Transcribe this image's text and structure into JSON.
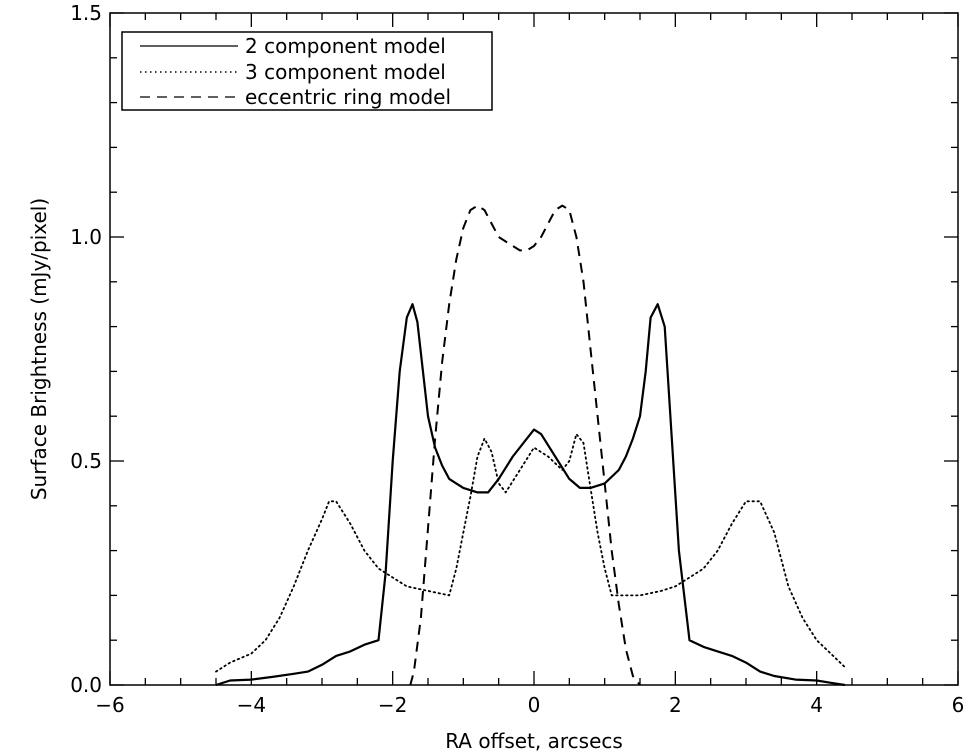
{
  "chart_data": {
    "type": "line",
    "title": "",
    "xlabel": "RA offset, arcsecs",
    "ylabel": "Surface Brightness (mJy/pixel)",
    "xlim": [
      -6,
      6
    ],
    "ylim": [
      0,
      1.5
    ],
    "x_ticks": [
      -6,
      -4,
      -2,
      0,
      2,
      4,
      6
    ],
    "x_tick_labels": [
      "−6",
      "−4",
      "−2",
      "0",
      "2",
      "4",
      "6"
    ],
    "y_ticks": [
      0,
      0.5,
      1,
      1.5
    ],
    "y_tick_labels": [
      "0.0",
      "0.5",
      "1.0",
      "1.5"
    ],
    "grid": false,
    "legend_position": "top-left",
    "series": [
      {
        "name": "2 component model",
        "style": "solid",
        "x": [
          -4.5,
          -4.3,
          -4.0,
          -3.7,
          -3.4,
          -3.2,
          -3.0,
          -2.8,
          -2.6,
          -2.4,
          -2.2,
          -2.1,
          -2.0,
          -1.9,
          -1.8,
          -1.72,
          -1.65,
          -1.5,
          -1.4,
          -1.3,
          -1.2,
          -1.0,
          -0.8,
          -0.65,
          -0.5,
          -0.3,
          -0.1,
          0.0,
          0.1,
          0.3,
          0.5,
          0.65,
          0.8,
          1.0,
          1.2,
          1.3,
          1.4,
          1.5,
          1.58,
          1.65,
          1.75,
          1.85,
          1.95,
          2.05,
          2.2,
          2.4,
          2.6,
          2.8,
          3.0,
          3.2,
          3.4,
          3.7,
          4.0,
          4.2,
          4.4
        ],
        "y": [
          0.0,
          0.01,
          0.012,
          0.018,
          0.025,
          0.03,
          0.045,
          0.065,
          0.075,
          0.09,
          0.1,
          0.25,
          0.5,
          0.7,
          0.82,
          0.85,
          0.81,
          0.6,
          0.53,
          0.49,
          0.46,
          0.44,
          0.43,
          0.43,
          0.46,
          0.51,
          0.55,
          0.57,
          0.56,
          0.51,
          0.46,
          0.44,
          0.44,
          0.45,
          0.48,
          0.51,
          0.55,
          0.6,
          0.7,
          0.82,
          0.85,
          0.8,
          0.55,
          0.3,
          0.1,
          0.085,
          0.075,
          0.065,
          0.05,
          0.03,
          0.02,
          0.012,
          0.01,
          0.005,
          0.0
        ]
      },
      {
        "name": "3 component model",
        "style": "dotted",
        "x": [
          -4.5,
          -4.3,
          -4.0,
          -3.8,
          -3.6,
          -3.4,
          -3.2,
          -3.0,
          -2.9,
          -2.8,
          -2.6,
          -2.4,
          -2.2,
          -2.0,
          -1.8,
          -1.5,
          -1.2,
          -1.1,
          -1.0,
          -0.9,
          -0.8,
          -0.7,
          -0.6,
          -0.5,
          -0.4,
          -0.2,
          0.0,
          0.2,
          0.4,
          0.5,
          0.6,
          0.7,
          0.8,
          0.9,
          1.0,
          1.1,
          1.2,
          1.5,
          1.8,
          2.0,
          2.2,
          2.4,
          2.6,
          2.8,
          3.0,
          3.2,
          3.4,
          3.6,
          3.8,
          4.0,
          4.2,
          4.4
        ],
        "y": [
          0.03,
          0.05,
          0.07,
          0.1,
          0.15,
          0.22,
          0.3,
          0.37,
          0.41,
          0.41,
          0.36,
          0.3,
          0.26,
          0.24,
          0.22,
          0.21,
          0.2,
          0.26,
          0.34,
          0.42,
          0.51,
          0.55,
          0.52,
          0.45,
          0.43,
          0.48,
          0.53,
          0.51,
          0.48,
          0.5,
          0.56,
          0.54,
          0.44,
          0.34,
          0.26,
          0.2,
          0.2,
          0.2,
          0.21,
          0.22,
          0.24,
          0.26,
          0.3,
          0.36,
          0.41,
          0.41,
          0.34,
          0.22,
          0.15,
          0.1,
          0.07,
          0.04
        ]
      },
      {
        "name": "eccentric ring model",
        "style": "dashed",
        "x": [
          -1.75,
          -1.7,
          -1.6,
          -1.5,
          -1.4,
          -1.3,
          -1.2,
          -1.1,
          -1.0,
          -0.9,
          -0.8,
          -0.7,
          -0.6,
          -0.5,
          -0.4,
          -0.3,
          -0.2,
          -0.1,
          0.0,
          0.1,
          0.2,
          0.3,
          0.4,
          0.5,
          0.6,
          0.7,
          0.8,
          0.9,
          1.0,
          1.1,
          1.2,
          1.3,
          1.4,
          1.5
        ],
        "y": [
          0.0,
          0.03,
          0.15,
          0.35,
          0.55,
          0.72,
          0.85,
          0.95,
          1.02,
          1.06,
          1.07,
          1.06,
          1.03,
          1.0,
          0.99,
          0.98,
          0.97,
          0.97,
          0.98,
          1.0,
          1.03,
          1.06,
          1.07,
          1.06,
          1.0,
          0.9,
          0.75,
          0.6,
          0.45,
          0.3,
          0.18,
          0.08,
          0.02,
          0.0
        ]
      }
    ]
  }
}
